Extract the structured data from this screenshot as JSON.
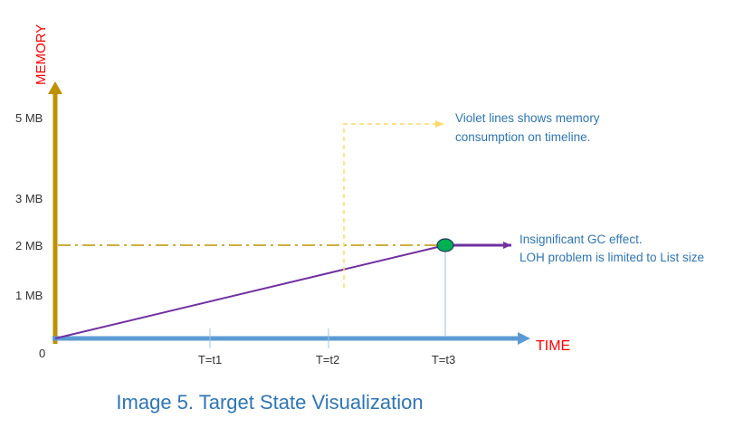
{
  "chart_data": {
    "type": "line",
    "title": "",
    "xlabel": "TIME",
    "ylabel": "MEMORY",
    "origin_label": "0",
    "y_ticks": [
      "1 MB",
      "2 MB",
      "3 MB",
      "5 MB"
    ],
    "x_ticks": [
      "T=t1",
      "T=t2",
      "T=t3"
    ],
    "series": [
      {
        "values": [
          {
            "x": "0",
            "y": 0
          },
          {
            "x": "T=t3",
            "y": 2
          }
        ],
        "color": "#7030a0"
      }
    ],
    "reference_line": {
      "y": 2,
      "color": "#bf9000"
    },
    "annotations": [
      {
        "text": "Violet lines shows memory consumption on timeline.",
        "lines": [
          "Violet lines shows memory",
          "consumption on timeline."
        ]
      },
      {
        "text": "Insignificant GC effect. LOH problem is limited to List size",
        "lines": [
          "Insignificant GC effect.",
          "LOH problem is limited to List size"
        ]
      }
    ]
  },
  "caption": "Image 5. Target State Visualization",
  "colors": {
    "y_axis": "#bf9000",
    "x_axis": "#5b9bd5",
    "axis_title": "#ff0000",
    "tick_text": "#333333",
    "annotation_text": "#2e75b6",
    "caption_text": "#2e75b6",
    "leader_line": "#ffd966",
    "marker_fill": "#00b050",
    "marker_stroke": "#1f3864",
    "drop_line": "#bdd7ee"
  }
}
